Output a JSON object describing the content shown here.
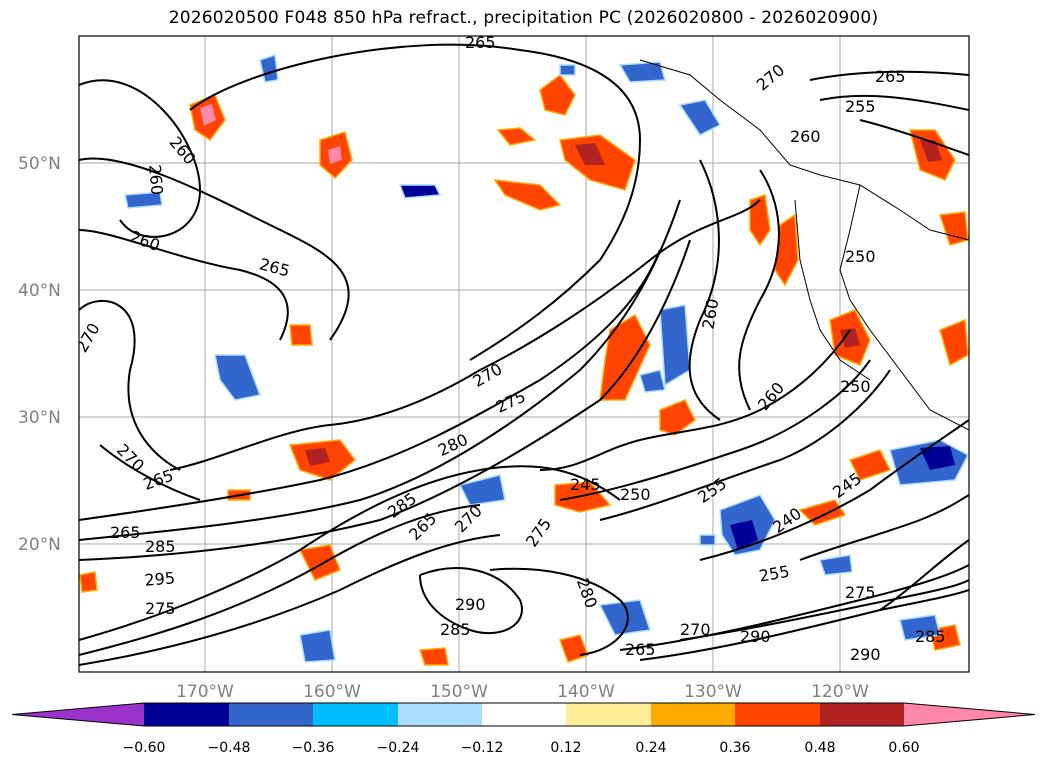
{
  "title": "2026020500 F048 850 hPa refract., precipitation PC (2026020800 - 2026020900)",
  "map": {
    "lat_labels": [
      "50°N",
      "40°N",
      "30°N",
      "20°N"
    ],
    "lon_labels": [
      "170°W",
      "160°W",
      "150°W",
      "140°W",
      "130°W",
      "120°W"
    ],
    "contour_labels": [
      "265",
      "260",
      "260",
      "260",
      "265",
      "270",
      "270",
      "275",
      "270",
      "280",
      "285",
      "265",
      "265",
      "285",
      "295",
      "275",
      "270",
      "265",
      "260",
      "245",
      "250",
      "275",
      "280",
      "285",
      "290",
      "265",
      "270",
      "255",
      "240",
      "245",
      "250",
      "255",
      "260",
      "250",
      "255",
      "260",
      "265",
      "270",
      "275",
      "290",
      "290",
      "285"
    ]
  },
  "colorbar": {
    "ticks": [
      "−0.60",
      "−0.48",
      "−0.36",
      "−0.24",
      "−0.12",
      "0.12",
      "0.24",
      "0.36",
      "0.48",
      "0.60"
    ],
    "colors": [
      "#9933cc",
      "#000099",
      "#3366cc",
      "#00bfff",
      "#aaddff",
      "#ffffff",
      "#ffee99",
      "#ffaa00",
      "#ff4400",
      "#b22222",
      "#ff88aa"
    ]
  }
}
